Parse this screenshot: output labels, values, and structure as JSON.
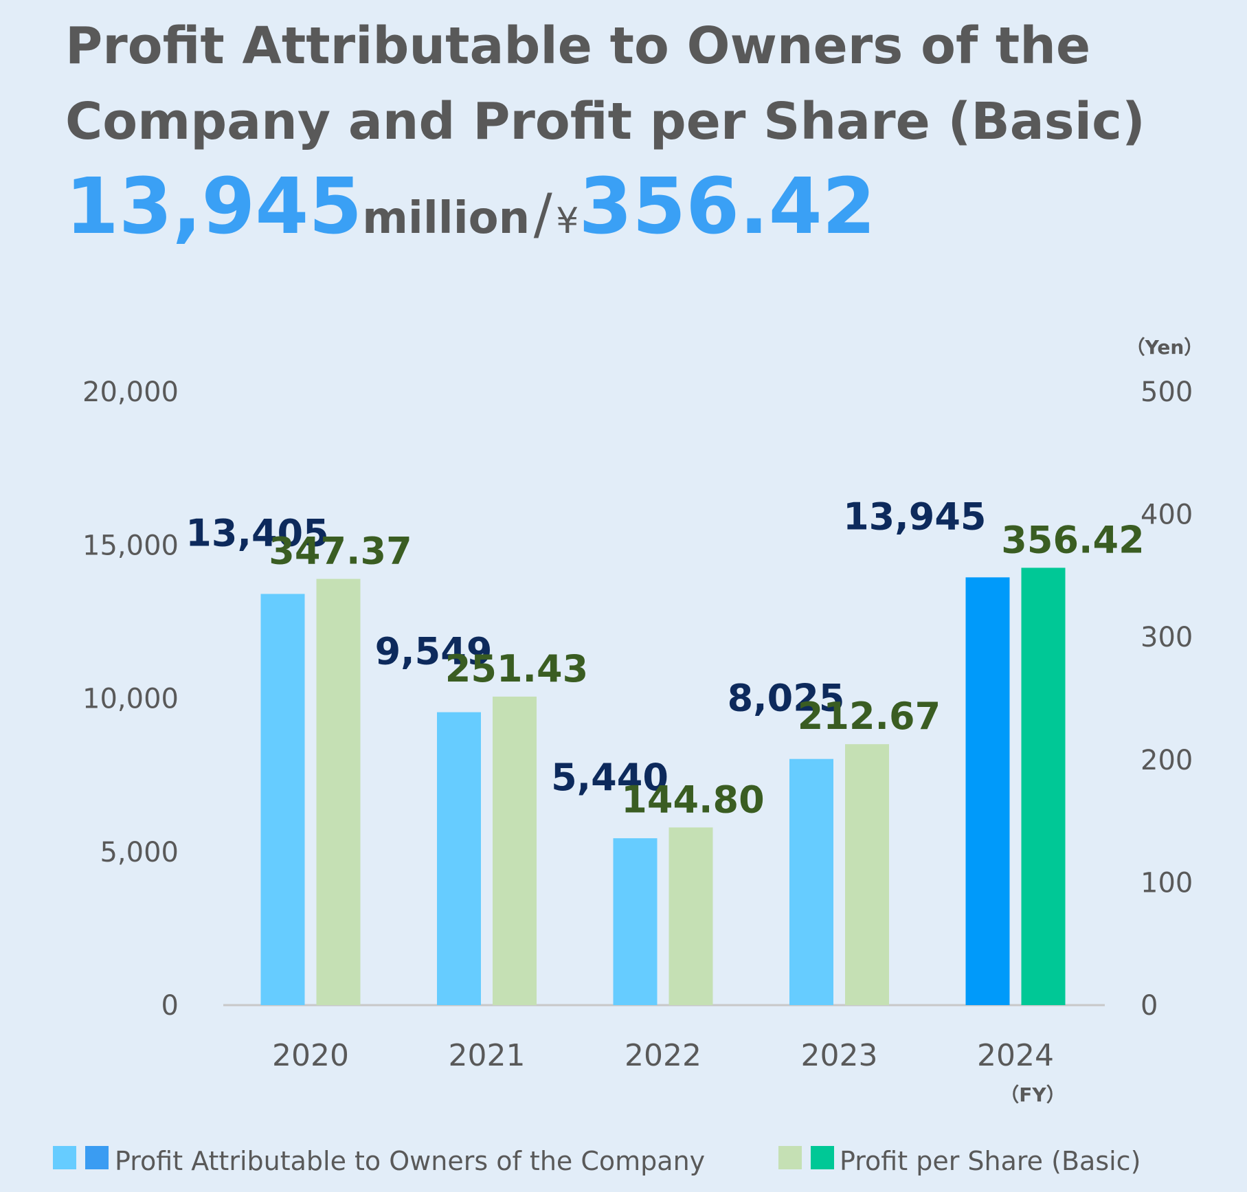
{
  "title": "Profit Attributable to Owners of the Company and Profit per Share (Basic)",
  "headline": {
    "profit_value": "13,945",
    "profit_unit": "million",
    "separator": "/",
    "eps_currency": "¥",
    "eps_value": "356.42"
  },
  "colors": {
    "profit_bar": "#66ccff",
    "profit_bar_highlight": "#009afa",
    "eps_bar": "#c5e0b4",
    "eps_bar_highlight": "#00c896",
    "profit_label": "#0d2a5c",
    "eps_label": "#3a5d22",
    "headline_accent": "#3aa0f5"
  },
  "chart_data": {
    "type": "bar",
    "categories": [
      "2020",
      "2021",
      "2022",
      "2023",
      "2024"
    ],
    "x_unit_label": "（FY）",
    "y_left": {
      "ylim": [
        0,
        20000
      ],
      "ticks": [
        "0",
        "5,000",
        "10,000",
        "15,000",
        "20,000"
      ]
    },
    "y_right": {
      "ylim": [
        0,
        500
      ],
      "ticks": [
        "0",
        "100",
        "200",
        "300",
        "400",
        "500"
      ],
      "unit_label": "（Yen）"
    },
    "series": [
      {
        "name": "Profit Attributable to Owners of the Company",
        "axis": "left",
        "values": [
          13405,
          9549,
          5440,
          8025,
          13945
        ],
        "labels": [
          "13,405",
          "9,549",
          "5,440",
          "8,025",
          "13,945"
        ]
      },
      {
        "name": "Profit per Share (Basic)",
        "axis": "right",
        "values": [
          347.37,
          251.43,
          144.8,
          212.67,
          356.42
        ],
        "labels": [
          "347.37",
          "251.43",
          "144.80",
          "212.67",
          "356.42"
        ]
      }
    ],
    "highlight_category": "2024",
    "legend_position": "bottom"
  }
}
